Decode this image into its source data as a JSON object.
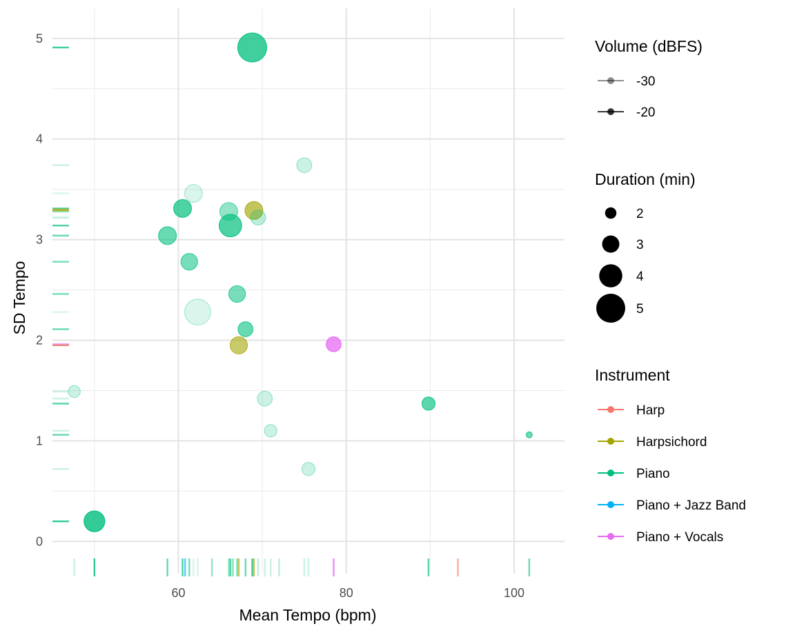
{
  "chart_data": {
    "type": "scatter",
    "title": "",
    "xlabel": "Mean Tempo (bpm)",
    "ylabel": "SD Tempo",
    "xlim": [
      45,
      106
    ],
    "ylim": [
      -0.32,
      5.3
    ],
    "x_ticks": [
      60,
      80,
      100
    ],
    "x_tick_labels": [
      "60",
      "80",
      "100"
    ],
    "y_ticks": [
      0,
      1,
      2,
      3,
      4,
      5
    ],
    "y_tick_labels": [
      "0",
      "1",
      "2",
      "3",
      "4",
      "5"
    ],
    "grid": true,
    "rug": true,
    "legend_position": "right",
    "legends": {
      "volume": {
        "title": "Volume (dBFS)",
        "entries": [
          {
            "label": "-30",
            "value": -30
          },
          {
            "label": "-20",
            "value": -20
          }
        ]
      },
      "duration": {
        "title": "Duration (min)",
        "entries": [
          {
            "label": "2",
            "value": 2
          },
          {
            "label": "3",
            "value": 3
          },
          {
            "label": "4",
            "value": 4
          },
          {
            "label": "5",
            "value": 5
          }
        ]
      },
      "instrument": {
        "title": "Instrument",
        "entries": [
          {
            "label": "Harp",
            "color": "#F8766D"
          },
          {
            "label": "Harpsichord",
            "color": "#A3A500"
          },
          {
            "label": "Piano",
            "color": "#00BF7D"
          },
          {
            "label": "Piano + Jazz Band",
            "color": "#00B0F6"
          },
          {
            "label": "Piano + Vocals",
            "color": "#E76BF3"
          }
        ]
      }
    },
    "points": [
      {
        "x": 68.8,
        "y": 4.91,
        "duration": 5.0,
        "volume": -19,
        "instrument": "Piano"
      },
      {
        "x": 75.0,
        "y": 3.74,
        "duration": 2.6,
        "volume": -29,
        "instrument": "Piano"
      },
      {
        "x": 61.8,
        "y": 3.46,
        "duration": 3.1,
        "volume": -30,
        "instrument": "Piano"
      },
      {
        "x": 60.5,
        "y": 3.31,
        "duration": 3.1,
        "volume": -20,
        "instrument": "Piano"
      },
      {
        "x": 66.0,
        "y": 3.28,
        "duration": 3.1,
        "volume": -25,
        "instrument": "Piano"
      },
      {
        "x": 69.0,
        "y": 3.29,
        "duration": 3.1,
        "volume": -21,
        "instrument": "Harpsichord"
      },
      {
        "x": 69.5,
        "y": 3.22,
        "duration": 2.6,
        "volume": -28,
        "instrument": "Piano"
      },
      {
        "x": 66.2,
        "y": 3.14,
        "duration": 3.9,
        "volume": -20,
        "instrument": "Piano"
      },
      {
        "x": 58.7,
        "y": 3.04,
        "duration": 3.1,
        "volume": -22,
        "instrument": "Piano"
      },
      {
        "x": 61.3,
        "y": 2.78,
        "duration": 2.9,
        "volume": -23,
        "instrument": "Piano"
      },
      {
        "x": 67.0,
        "y": 2.46,
        "duration": 2.9,
        "volume": -23,
        "instrument": "Piano"
      },
      {
        "x": 62.3,
        "y": 2.28,
        "duration": 4.5,
        "volume": -30,
        "instrument": "Piano"
      },
      {
        "x": 68.0,
        "y": 2.11,
        "duration": 2.6,
        "volume": -22,
        "instrument": "Piano"
      },
      {
        "x": 67.2,
        "y": 1.95,
        "duration": 3.0,
        "volume": -22,
        "instrument": "Harpsichord"
      },
      {
        "x": 78.5,
        "y": 1.96,
        "duration": 2.6,
        "volume": -19,
        "instrument": "Piano + Vocals"
      },
      {
        "x": 47.6,
        "y": 1.49,
        "duration": 2.1,
        "volume": -29,
        "instrument": "Piano"
      },
      {
        "x": 70.3,
        "y": 1.42,
        "duration": 2.6,
        "volume": -29,
        "instrument": "Piano"
      },
      {
        "x": 89.8,
        "y": 1.37,
        "duration": 2.3,
        "volume": -21,
        "instrument": "Piano"
      },
      {
        "x": 71.0,
        "y": 1.1,
        "duration": 2.2,
        "volume": -29,
        "instrument": "Piano"
      },
      {
        "x": 101.8,
        "y": 1.06,
        "duration": 1.1,
        "volume": -22,
        "instrument": "Piano"
      },
      {
        "x": 75.5,
        "y": 0.72,
        "duration": 2.3,
        "volume": -29,
        "instrument": "Piano"
      },
      {
        "x": 50.0,
        "y": 0.2,
        "duration": 3.6,
        "volume": -18,
        "instrument": "Piano"
      }
    ],
    "rug_y_extra": [
      {
        "y": 3.3,
        "instrument": "Harpsichord",
        "volume": -21
      },
      {
        "y": 1.95,
        "instrument": "Harp",
        "volume": -22
      }
    ],
    "rug_x_extra": [
      {
        "x": 60.8,
        "instrument": "Piano + Jazz Band",
        "volume": -21
      },
      {
        "x": 93.3,
        "instrument": "Harp",
        "volume": -22
      },
      {
        "x": 64.0,
        "instrument": "Piano",
        "volume": -25
      },
      {
        "x": 72.0,
        "instrument": "Piano",
        "volume": -28
      },
      {
        "x": 66.5,
        "instrument": "Piano",
        "volume": -24
      }
    ]
  }
}
